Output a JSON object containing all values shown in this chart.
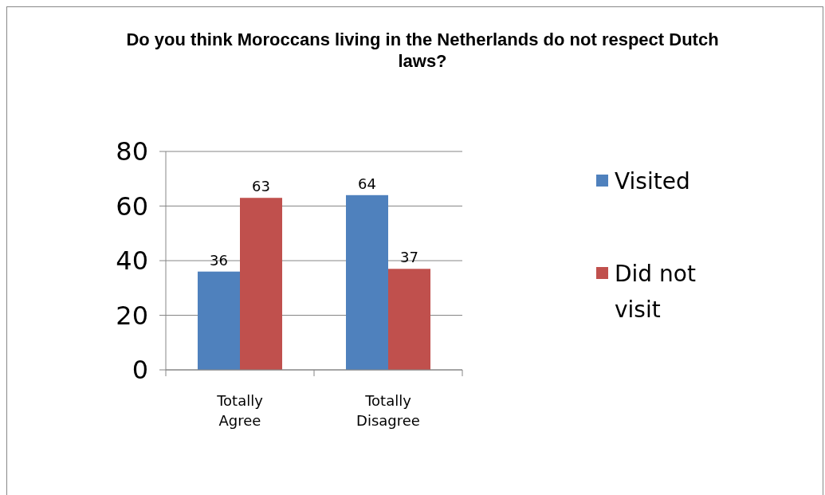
{
  "chart_data": {
    "type": "bar",
    "title": "Do you think Moroccans living in the Netherlands do not respect Dutch laws?",
    "categories": [
      "Totally Agree",
      "Totally Disagree"
    ],
    "series": [
      {
        "name": "Visited",
        "color": "#4f81bd",
        "values": [
          36,
          64
        ]
      },
      {
        "name": "Did not visit",
        "color": "#c0504d",
        "values": [
          63,
          37
        ]
      }
    ],
    "ylim": [
      0,
      80
    ],
    "yticks": [
      0,
      20,
      40,
      60,
      80
    ],
    "grid": "y",
    "legend": "right",
    "data_labels": true
  }
}
